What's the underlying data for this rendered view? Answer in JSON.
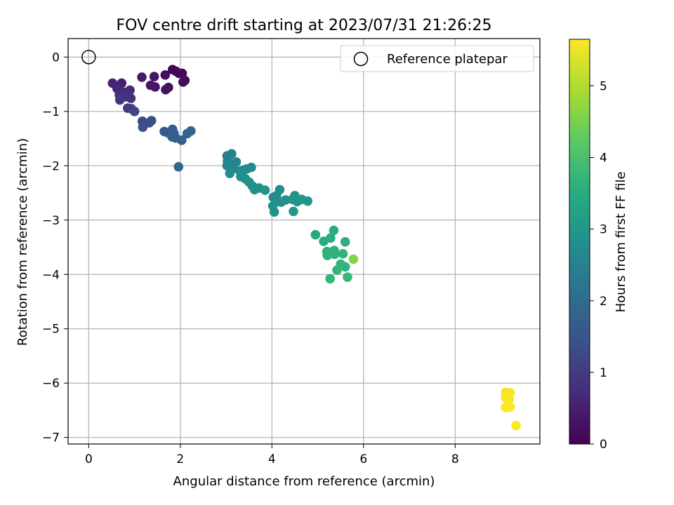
{
  "chart_data": {
    "type": "scatter",
    "title": "FOV centre drift starting at 2023/07/31 21:26:25",
    "xlabel": "Angular distance from reference (arcmin)",
    "ylabel": "Rotation from reference (arcmin)",
    "xlim": [
      -0.45,
      9.85
    ],
    "ylim": [
      -7.12,
      0.34
    ],
    "xticks": [
      "0",
      "2",
      "4",
      "6",
      "8"
    ],
    "yticks": [
      "0",
      "−1",
      "−2",
      "−3",
      "−4",
      "−5",
      "−6",
      "−7"
    ],
    "grid": true,
    "legend": {
      "placement": "top-right",
      "entries": [
        "Reference platepar"
      ]
    },
    "reference_point": {
      "x": 0,
      "y": 0
    },
    "colorbar": {
      "label": "Hours from first FF file",
      "range": [
        0,
        5.65
      ],
      "ticks": [
        "0",
        "1",
        "2",
        "3",
        "4",
        "5"
      ],
      "colormap": "viridis"
    },
    "points": [
      {
        "x": 1.83,
        "y": -0.23,
        "t": 0.05
      },
      {
        "x": 1.9,
        "y": -0.26,
        "t": 0.08
      },
      {
        "x": 1.97,
        "y": -0.3,
        "t": 0.1
      },
      {
        "x": 2.04,
        "y": -0.3,
        "t": 0.12
      },
      {
        "x": 2.1,
        "y": -0.43,
        "t": 0.15
      },
      {
        "x": 2.06,
        "y": -0.46,
        "t": 0.18
      },
      {
        "x": 1.67,
        "y": -0.33,
        "t": 0.2
      },
      {
        "x": 1.74,
        "y": -0.56,
        "t": 0.22
      },
      {
        "x": 1.68,
        "y": -0.6,
        "t": 0.25
      },
      {
        "x": 1.43,
        "y": -0.36,
        "t": 0.3
      },
      {
        "x": 1.35,
        "y": -0.52,
        "t": 0.33
      },
      {
        "x": 1.45,
        "y": -0.55,
        "t": 0.36
      },
      {
        "x": 1.16,
        "y": -0.37,
        "t": 0.4
      },
      {
        "x": 0.72,
        "y": -0.48,
        "t": 0.5
      },
      {
        "x": 0.52,
        "y": -0.48,
        "t": 0.55
      },
      {
        "x": 0.62,
        "y": -0.58,
        "t": 0.6
      },
      {
        "x": 0.9,
        "y": -0.61,
        "t": 0.65
      },
      {
        "x": 0.78,
        "y": -0.65,
        "t": 0.7
      },
      {
        "x": 0.67,
        "y": -0.7,
        "t": 0.75
      },
      {
        "x": 0.8,
        "y": -0.73,
        "t": 0.8
      },
      {
        "x": 0.92,
        "y": -0.76,
        "t": 0.85
      },
      {
        "x": 0.68,
        "y": -0.79,
        "t": 0.9
      },
      {
        "x": 0.85,
        "y": -0.94,
        "t": 1.0
      },
      {
        "x": 0.93,
        "y": -0.95,
        "t": 1.05
      },
      {
        "x": 1.0,
        "y": -1.0,
        "t": 1.1
      },
      {
        "x": 1.17,
        "y": -1.18,
        "t": 1.25
      },
      {
        "x": 1.37,
        "y": -1.17,
        "t": 1.3
      },
      {
        "x": 1.32,
        "y": -1.21,
        "t": 1.35
      },
      {
        "x": 1.18,
        "y": -1.29,
        "t": 1.4
      },
      {
        "x": 1.65,
        "y": -1.37,
        "t": 1.55
      },
      {
        "x": 1.72,
        "y": -1.39,
        "t": 1.6
      },
      {
        "x": 1.83,
        "y": -1.33,
        "t": 1.62
      },
      {
        "x": 1.86,
        "y": -1.4,
        "t": 1.65
      },
      {
        "x": 1.82,
        "y": -1.47,
        "t": 1.7
      },
      {
        "x": 1.9,
        "y": -1.49,
        "t": 1.72
      },
      {
        "x": 2.03,
        "y": -1.53,
        "t": 1.75
      },
      {
        "x": 2.15,
        "y": -1.41,
        "t": 1.8
      },
      {
        "x": 2.23,
        "y": -1.36,
        "t": 1.85
      },
      {
        "x": 1.96,
        "y": -2.02,
        "t": 1.9
      },
      {
        "x": 3.02,
        "y": -1.82,
        "t": 2.45
      },
      {
        "x": 3.12,
        "y": -1.78,
        "t": 2.5
      },
      {
        "x": 3.03,
        "y": -1.91,
        "t": 2.52
      },
      {
        "x": 3.1,
        "y": -1.96,
        "t": 2.55
      },
      {
        "x": 3.22,
        "y": -1.93,
        "t": 2.57
      },
      {
        "x": 3.02,
        "y": -2.0,
        "t": 2.6
      },
      {
        "x": 3.15,
        "y": -2.05,
        "t": 2.62
      },
      {
        "x": 3.3,
        "y": -2.1,
        "t": 2.65
      },
      {
        "x": 3.38,
        "y": -2.08,
        "t": 2.67
      },
      {
        "x": 3.45,
        "y": -2.06,
        "t": 2.7
      },
      {
        "x": 3.55,
        "y": -2.03,
        "t": 2.72
      },
      {
        "x": 3.08,
        "y": -2.14,
        "t": 2.75
      },
      {
        "x": 3.32,
        "y": -2.2,
        "t": 2.78
      },
      {
        "x": 3.42,
        "y": -2.24,
        "t": 2.8
      },
      {
        "x": 3.5,
        "y": -2.3,
        "t": 2.82
      },
      {
        "x": 3.57,
        "y": -2.37,
        "t": 2.85
      },
      {
        "x": 3.62,
        "y": -2.44,
        "t": 2.87
      },
      {
        "x": 3.72,
        "y": -2.41,
        "t": 2.9
      },
      {
        "x": 3.85,
        "y": -2.45,
        "t": 2.92
      },
      {
        "x": 4.03,
        "y": -2.58,
        "t": 2.7
      },
      {
        "x": 4.1,
        "y": -2.55,
        "t": 2.72
      },
      {
        "x": 4.17,
        "y": -2.44,
        "t": 2.75
      },
      {
        "x": 4.12,
        "y": -2.65,
        "t": 2.77
      },
      {
        "x": 4.2,
        "y": -2.67,
        "t": 2.8
      },
      {
        "x": 4.3,
        "y": -2.63,
        "t": 2.82
      },
      {
        "x": 4.02,
        "y": -2.74,
        "t": 2.85
      },
      {
        "x": 4.05,
        "y": -2.85,
        "t": 2.88
      },
      {
        "x": 4.5,
        "y": -2.55,
        "t": 2.9
      },
      {
        "x": 4.45,
        "y": -2.62,
        "t": 2.92
      },
      {
        "x": 4.55,
        "y": -2.66,
        "t": 2.94
      },
      {
        "x": 4.65,
        "y": -2.62,
        "t": 2.96
      },
      {
        "x": 4.78,
        "y": -2.65,
        "t": 2.98
      },
      {
        "x": 4.47,
        "y": -2.84,
        "t": 3.0
      },
      {
        "x": 4.95,
        "y": -3.27,
        "t": 3.4
      },
      {
        "x": 5.13,
        "y": -3.39,
        "t": 3.45
      },
      {
        "x": 5.35,
        "y": -3.19,
        "t": 3.5
      },
      {
        "x": 5.28,
        "y": -3.33,
        "t": 3.52
      },
      {
        "x": 5.6,
        "y": -3.4,
        "t": 3.55
      },
      {
        "x": 5.2,
        "y": -3.58,
        "t": 3.58
      },
      {
        "x": 5.36,
        "y": -3.56,
        "t": 3.6
      },
      {
        "x": 5.37,
        "y": -3.63,
        "t": 3.62
      },
      {
        "x": 5.21,
        "y": -3.65,
        "t": 3.64
      },
      {
        "x": 5.55,
        "y": -3.62,
        "t": 3.66
      },
      {
        "x": 5.5,
        "y": -3.81,
        "t": 3.68
      },
      {
        "x": 5.6,
        "y": -3.86,
        "t": 3.7
      },
      {
        "x": 5.42,
        "y": -3.92,
        "t": 3.72
      },
      {
        "x": 5.27,
        "y": -4.08,
        "t": 3.75
      },
      {
        "x": 5.65,
        "y": -4.05,
        "t": 3.78
      },
      {
        "x": 5.78,
        "y": -3.72,
        "t": 4.6
      },
      {
        "x": 9.1,
        "y": -6.17,
        "t": 5.55
      },
      {
        "x": 9.2,
        "y": -6.18,
        "t": 5.57
      },
      {
        "x": 9.15,
        "y": -6.22,
        "t": 5.58
      },
      {
        "x": 9.1,
        "y": -6.27,
        "t": 5.6
      },
      {
        "x": 9.18,
        "y": -6.3,
        "t": 5.61
      },
      {
        "x": 9.1,
        "y": -6.45,
        "t": 5.62
      },
      {
        "x": 9.2,
        "y": -6.44,
        "t": 5.63
      },
      {
        "x": 9.33,
        "y": -6.78,
        "t": 5.65
      }
    ]
  },
  "colors": {
    "grid": "#b0b0b0",
    "reference_marker_edge": "#000000",
    "legend_border": "#cccccc"
  }
}
